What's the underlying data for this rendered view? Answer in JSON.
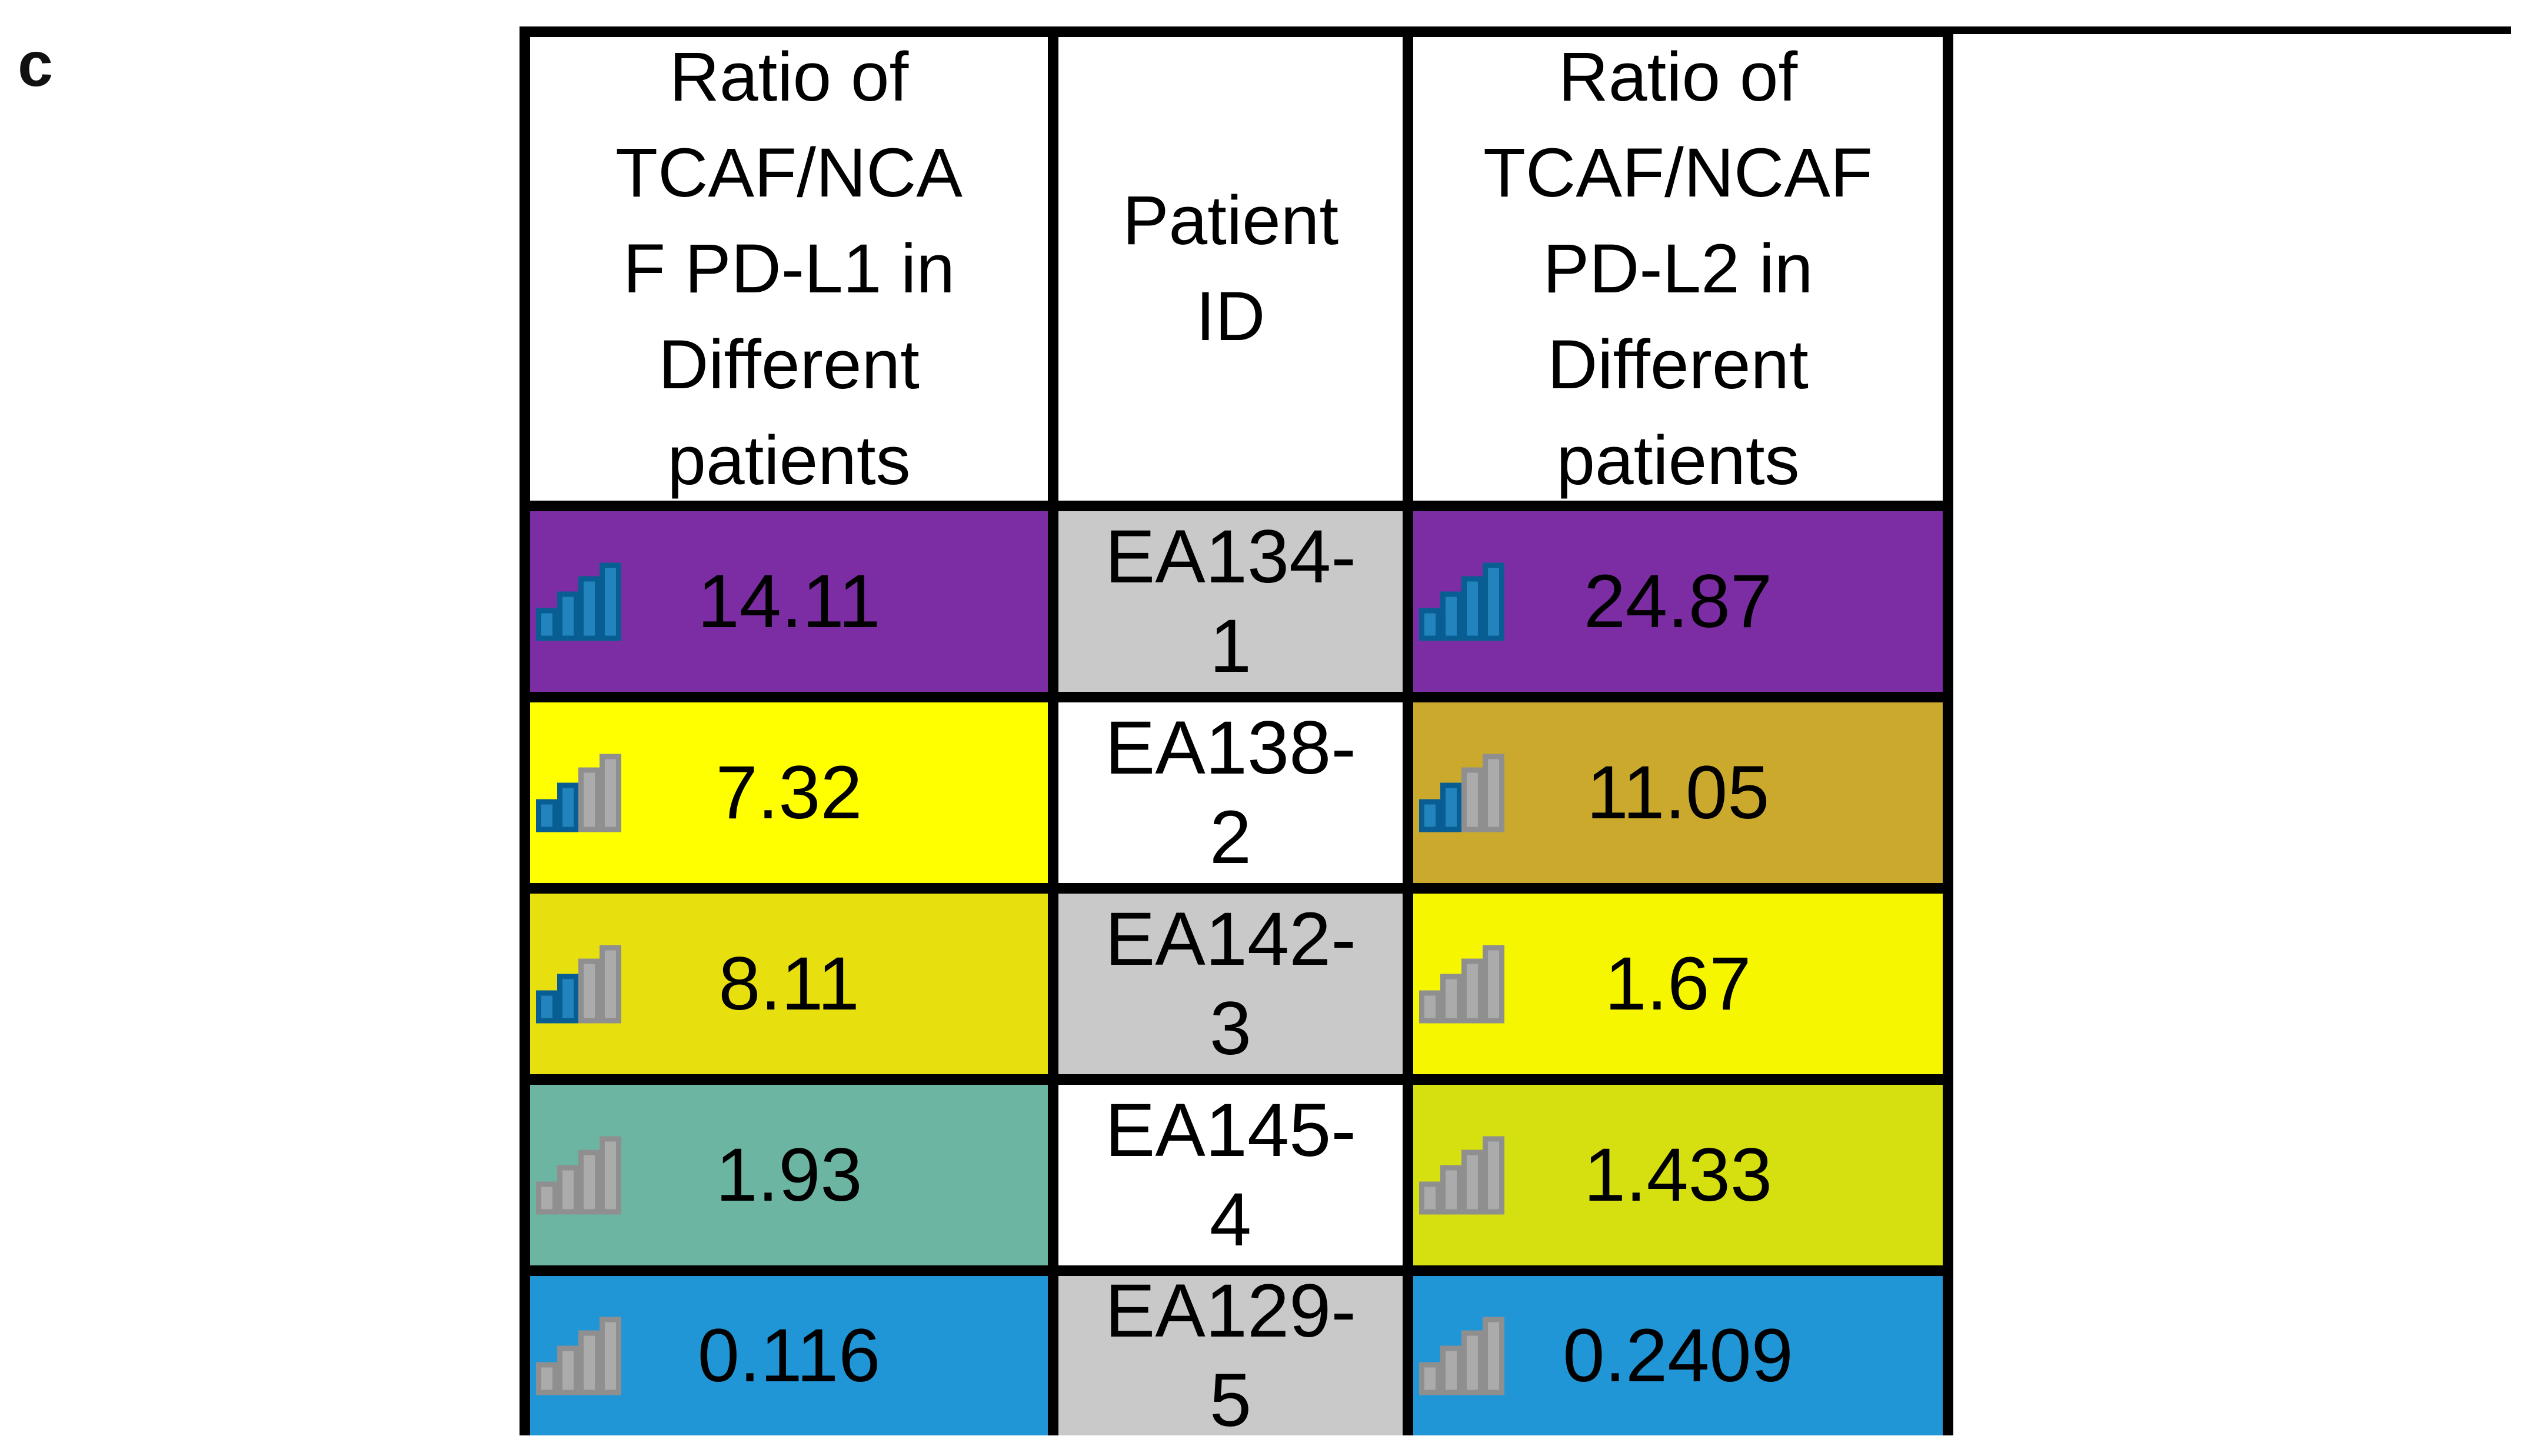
{
  "panel_label": "c",
  "colors": {
    "border": "#000000",
    "icon_blue_fill": "#2383BD",
    "icon_blue_stroke": "#085E93",
    "icon_gray_fill": "#ABABAB",
    "icon_gray_stroke": "#8F8F8F"
  },
  "table": {
    "headers": [
      {
        "label": "Ratio of TCAF/NCAF PD-L1 in Different patients",
        "lines": [
          "Ratio of",
          "TCAF/NCA",
          "F PD-L1 in",
          "Different",
          "patients"
        ]
      },
      {
        "label": "Patient ID",
        "lines": [
          "Patient",
          "ID"
        ]
      },
      {
        "label": "Ratio of TCAF/NCAF PD-L2 in Different patients",
        "lines": [
          "Ratio of",
          "TCAF/NCAF",
          "PD-L2 in",
          "Different",
          "patients"
        ]
      }
    ],
    "rows": [
      {
        "pdl1": {
          "value": "14.11",
          "bg": "#7C2DA3",
          "icon_filled": 4
        },
        "id_lines": [
          "EA134-",
          "1"
        ],
        "id_bg": "#C9C9C9",
        "pdl2": {
          "value": "24.87",
          "bg": "#7C2DA3",
          "icon_filled": 4
        }
      },
      {
        "pdl1": {
          "value": "7.32",
          "bg": "#FFFF00",
          "icon_filled": 2
        },
        "id_lines": [
          "EA138-",
          "2"
        ],
        "id_bg": "#FFFFFF",
        "pdl2": {
          "value": "11.05",
          "bg": "#CBA92C",
          "icon_filled": 2
        }
      },
      {
        "pdl1": {
          "value": "8.11",
          "bg": "#E8E00E",
          "icon_filled": 2
        },
        "id_lines": [
          "EA142-",
          "3"
        ],
        "id_bg": "#C9C9C9",
        "pdl2": {
          "value": "1.67",
          "bg": "#F6F600",
          "icon_filled": 0
        }
      },
      {
        "pdl1": {
          "value": "1.93",
          "bg": "#6CB5A3",
          "icon_filled": 0
        },
        "id_lines": [
          "EA145-",
          "4"
        ],
        "id_bg": "#FFFFFF",
        "pdl2": {
          "value": "1.433",
          "bg": "#D6DF10",
          "icon_filled": 0
        }
      },
      {
        "pdl1": {
          "value": "0.116",
          "bg": "#2196D6",
          "icon_filled": 0
        },
        "id_lines": [
          "EA129-",
          "5"
        ],
        "id_bg": "#C9C9C9",
        "pdl2": {
          "value": "0.2409",
          "bg": "#2196D6",
          "icon_filled": 0
        }
      }
    ]
  },
  "chart_data": {
    "type": "table",
    "title": "",
    "columns": [
      "Ratio of TCAF/NCAF PD-L1 in Different patients",
      "Patient ID",
      "Ratio of TCAF/NCAF PD-L2 in Different patients"
    ],
    "rows": [
      [
        14.11,
        "EA134-1",
        24.87
      ],
      [
        7.32,
        "EA138-2",
        11.05
      ],
      [
        8.11,
        "EA142-3",
        1.67
      ],
      [
        1.93,
        "EA145-4",
        1.433
      ],
      [
        0.116,
        "EA129-5",
        0.2409
      ]
    ]
  }
}
